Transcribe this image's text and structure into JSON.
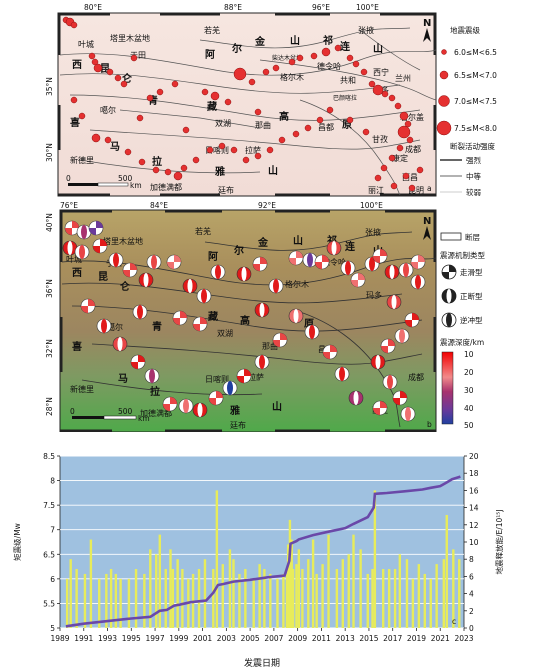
{
  "panel_a": {
    "lon_labels": [
      "80°E",
      "88°E",
      "96°E",
      "100°E"
    ],
    "lat_labels": [
      "35°N",
      "30°N"
    ],
    "north_arrow": "N",
    "scale_zero": "0",
    "scale_value": "500",
    "scale_unit": "km",
    "panel_letter": "a",
    "legend": {
      "magnitude_title": "地震震级",
      "magnitude_classes": [
        "6.0≤M<6.5",
        "6.5≤M<7.0",
        "7.0≤M<7.5",
        "7.5≤M<8.0"
      ],
      "fault_title": "断裂活动强度",
      "fault_classes": [
        "强烈",
        "中等",
        "较弱"
      ]
    },
    "place_labels": [
      "叶城",
      "塔里木盆地",
      "于田",
      "若羌",
      "张掖",
      "金",
      "山",
      "祁",
      "连",
      "山",
      "阿",
      "尔",
      "西宁",
      "兰州",
      "柴达木盆地",
      "德令哈",
      "格尔木",
      "共和",
      "西",
      "昆",
      "仑",
      "青",
      "藏",
      "高",
      "原",
      "噶尔",
      "双湖",
      "那曲",
      "玛多",
      "巴颜喀拉",
      "喜",
      "马",
      "拉",
      "雅",
      "山",
      "新德里",
      "加德满都",
      "日喀则",
      "拉萨",
      "廷布",
      "昌都",
      "成都",
      "康定",
      "西昌",
      "昆明",
      "丽江",
      "甘孜",
      "若尔盖"
    ],
    "n_epicenters": 72
  },
  "panel_b": {
    "lon_labels": [
      "76°E",
      "84°E",
      "92°E",
      "100°E"
    ],
    "lat_labels": [
      "40°N",
      "36°N",
      "32°N",
      "28°N"
    ],
    "north_arrow": "N",
    "scale_zero": "0",
    "scale_value": "500",
    "scale_unit": "km",
    "panel_letter": "b",
    "legend": {
      "fault_label": "断层",
      "mechanism_title": "震源机制类型",
      "mechanism_types": [
        "走滑型",
        "正断型",
        "逆冲型"
      ],
      "depth_title": "震源深度/km",
      "depth_ticks": [
        "10",
        "20",
        "30",
        "40",
        "50"
      ]
    },
    "n_mechanisms": 60
  },
  "chart_data": {
    "type": "bar",
    "xlabel": "发震日期",
    "ylabel_left": "矩震级/Mw",
    "ylabel_right": "地震释放能/E/10¹⁵J",
    "xlim": [
      1989,
      2023
    ],
    "ylim_left": [
      5.0,
      8.5
    ],
    "ylim_right": [
      0,
      20
    ],
    "x_ticks": [
      "1989",
      "1991",
      "1993",
      "1995",
      "1997",
      "1999",
      "2001",
      "2003",
      "2005",
      "2007",
      "2009",
      "2011",
      "2013",
      "2015",
      "2017",
      "2019",
      "2021",
      "2023"
    ],
    "y_ticks_left": [
      "5",
      "5.5",
      "6",
      "6.5",
      "7",
      "7.5",
      "8",
      "8.5"
    ],
    "y_ticks_right": [
      "0",
      "2",
      "4",
      "6",
      "8",
      "10",
      "12",
      "14",
      "16",
      "18",
      "20"
    ],
    "panel_letter": "c",
    "series": [
      {
        "kind": "bar",
        "color": "#e8ec5a",
        "points": [
          [
            1989.6,
            6.0
          ],
          [
            1989.9,
            6.4
          ],
          [
            1990.4,
            6.2
          ],
          [
            1991.1,
            6.1
          ],
          [
            1991.6,
            6.8
          ],
          [
            1992.3,
            6.0
          ],
          [
            1992.9,
            6.1
          ],
          [
            1993.3,
            6.2
          ],
          [
            1993.7,
            6.1
          ],
          [
            1994.1,
            6.0
          ],
          [
            1994.8,
            6.0
          ],
          [
            1995.4,
            6.2
          ],
          [
            1996.1,
            6.1
          ],
          [
            1996.6,
            6.6
          ],
          [
            1997.1,
            6.5
          ],
          [
            1997.4,
            6.9
          ],
          [
            1997.9,
            6.2
          ],
          [
            1998.3,
            6.6
          ],
          [
            1998.5,
            6.2
          ],
          [
            1998.9,
            6.4
          ],
          [
            1999.3,
            6.2
          ],
          [
            1999.8,
            6.0
          ],
          [
            2000.2,
            6.1
          ],
          [
            2000.7,
            6.2
          ],
          [
            2001.2,
            6.4
          ],
          [
            2001.9,
            6.2
          ],
          [
            2002.2,
            7.8
          ],
          [
            2002.7,
            6.3
          ],
          [
            2003.3,
            6.6
          ],
          [
            2003.6,
            6.4
          ],
          [
            2004.1,
            6.1
          ],
          [
            2004.6,
            6.2
          ],
          [
            2005.3,
            6.0
          ],
          [
            2005.8,
            6.3
          ],
          [
            2006.2,
            6.2
          ],
          [
            2006.7,
            6.1
          ],
          [
            2007.3,
            6.0
          ],
          [
            2007.8,
            6.1
          ],
          [
            2008.1,
            6.1
          ],
          [
            2008.2,
            6.7
          ],
          [
            2008.35,
            7.2
          ],
          [
            2008.5,
            6.8
          ],
          [
            2008.62,
            6.2
          ],
          [
            2008.9,
            6.3
          ],
          [
            2009.1,
            6.6
          ],
          [
            2009.4,
            6.2
          ],
          [
            2009.9,
            6.4
          ],
          [
            2010.3,
            6.8
          ],
          [
            2010.6,
            6.1
          ],
          [
            2011.1,
            6.3
          ],
          [
            2011.6,
            6.9
          ],
          [
            2012.3,
            6.2
          ],
          [
            2012.8,
            6.4
          ],
          [
            2013.3,
            6.5
          ],
          [
            2013.7,
            6.9
          ],
          [
            2014.3,
            6.6
          ],
          [
            2014.9,
            6.1
          ],
          [
            2015.3,
            6.2
          ],
          [
            2015.5,
            7.8
          ],
          [
            2016.2,
            6.2
          ],
          [
            2016.7,
            6.2
          ],
          [
            2017.2,
            6.2
          ],
          [
            2017.6,
            6.5
          ],
          [
            2018.2,
            6.4
          ],
          [
            2018.7,
            6.0
          ],
          [
            2019.2,
            6.3
          ],
          [
            2019.7,
            6.1
          ],
          [
            2020.2,
            6.0
          ],
          [
            2020.7,
            6.3
          ],
          [
            2021.3,
            6.4
          ],
          [
            2021.55,
            7.3
          ],
          [
            2022.1,
            6.6
          ],
          [
            2022.6,
            6.4
          ]
        ]
      },
      {
        "kind": "line",
        "axis": "right",
        "color": "#6a48a8",
        "points": [
          [
            1989.5,
            0.2
          ],
          [
            1991.0,
            0.5
          ],
          [
            1993.0,
            0.8
          ],
          [
            1995.0,
            1.1
          ],
          [
            1996.6,
            1.3
          ],
          [
            1997.4,
            2.0
          ],
          [
            1998.0,
            2.1
          ],
          [
            1998.6,
            2.6
          ],
          [
            1999.0,
            2.7
          ],
          [
            2000.0,
            3.0
          ],
          [
            2001.3,
            3.2
          ],
          [
            2001.9,
            4.1
          ],
          [
            2002.3,
            5.0
          ],
          [
            2002.7,
            5.1
          ],
          [
            2003.6,
            5.4
          ],
          [
            2005.0,
            5.6
          ],
          [
            2006.5,
            5.9
          ],
          [
            2007.9,
            6.1
          ],
          [
            2008.3,
            7.8
          ],
          [
            2008.4,
            9.8
          ],
          [
            2008.9,
            10.1
          ],
          [
            2009.1,
            10.3
          ],
          [
            2010.3,
            10.8
          ],
          [
            2011.6,
            11.2
          ],
          [
            2013.0,
            11.6
          ],
          [
            2013.7,
            12.1
          ],
          [
            2014.9,
            12.9
          ],
          [
            2015.4,
            14.0
          ],
          [
            2015.5,
            15.6
          ],
          [
            2016.5,
            15.7
          ],
          [
            2018.0,
            15.9
          ],
          [
            2019.5,
            16.1
          ],
          [
            2020.2,
            16.3
          ],
          [
            2021.0,
            16.5
          ],
          [
            2021.5,
            16.9
          ],
          [
            2022.0,
            17.3
          ],
          [
            2022.7,
            17.6
          ]
        ]
      }
    ]
  }
}
